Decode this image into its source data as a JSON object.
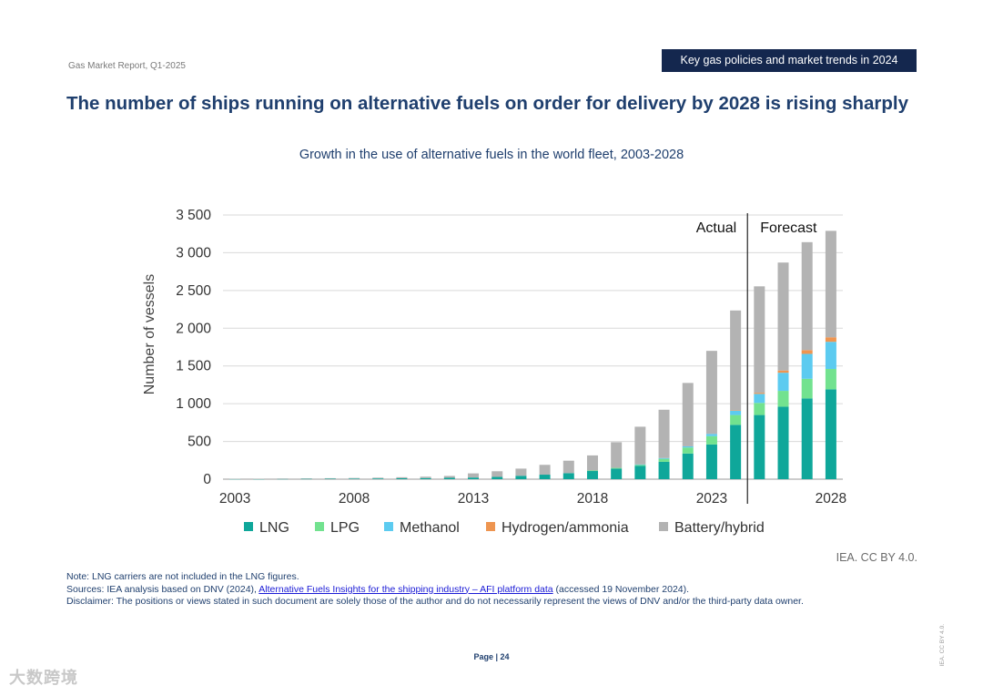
{
  "header": {
    "report_name": "Gas Market Report, Q1-2025",
    "section_banner": "Key gas policies and market trends in 2024"
  },
  "page_title": "The number of ships running on alternative fuels on order for delivery by 2028 is rising sharply",
  "chart_data": {
    "type": "bar",
    "stacked": true,
    "title": "Growth in the use of alternative fuels in the world fleet, 2003-2028",
    "xlabel": "",
    "ylabel": "Number of vessels",
    "ylim": [
      0,
      3500
    ],
    "yticks": [
      0,
      500,
      1000,
      1500,
      2000,
      2500,
      3000,
      3500
    ],
    "ytick_labels": [
      "0",
      "500",
      "1 000",
      "1 500",
      "2 000",
      "2 500",
      "3 000",
      "3 500"
    ],
    "categories": [
      "2003",
      "2004",
      "2005",
      "2006",
      "2007",
      "2008",
      "2009",
      "2010",
      "2011",
      "2012",
      "2013",
      "2014",
      "2015",
      "2016",
      "2017",
      "2018",
      "2019",
      "2020",
      "2021",
      "2022",
      "2023",
      "2024",
      "2025",
      "2026",
      "2027",
      "2028"
    ],
    "xtick_labels": [
      "2003",
      "2008",
      "2013",
      "2018",
      "2023",
      "2028"
    ],
    "grid": true,
    "legend_position": "bottom",
    "annotations": {
      "actual": "Actual",
      "forecast": "Forecast",
      "divider_after": "2024"
    },
    "series": [
      {
        "name": "LNG",
        "color": "#0fa79a",
        "values": [
          3,
          4,
          5,
          6,
          7,
          8,
          10,
          12,
          15,
          18,
          22,
          30,
          45,
          60,
          80,
          110,
          140,
          175,
          230,
          340,
          460,
          720,
          850,
          960,
          1070,
          1190
        ]
      },
      {
        "name": "LPG",
        "color": "#72e28f",
        "values": [
          0,
          0,
          0,
          0,
          0,
          0,
          0,
          0,
          0,
          0,
          0,
          0,
          0,
          0,
          0,
          5,
          10,
          15,
          40,
          80,
          110,
          130,
          160,
          210,
          260,
          270
        ]
      },
      {
        "name": "Methanol",
        "color": "#5ccbf0",
        "values": [
          0,
          0,
          0,
          0,
          0,
          0,
          0,
          0,
          0,
          0,
          0,
          0,
          0,
          0,
          0,
          0,
          0,
          5,
          10,
          15,
          30,
          60,
          120,
          240,
          330,
          360
        ]
      },
      {
        "name": "Hydrogen/ammonia",
        "color": "#ee9550",
        "values": [
          0,
          0,
          0,
          0,
          0,
          0,
          0,
          0,
          0,
          0,
          0,
          0,
          0,
          0,
          0,
          0,
          0,
          0,
          0,
          0,
          0,
          5,
          15,
          30,
          50,
          60
        ]
      },
      {
        "name": "Battery/hybrid",
        "color": "#b3b3b3",
        "values": [
          2,
          3,
          4,
          5,
          6,
          8,
          10,
          14,
          18,
          25,
          55,
          75,
          95,
          130,
          165,
          200,
          340,
          500,
          640,
          840,
          1100,
          1320,
          1410,
          1430,
          1430,
          1410
        ]
      }
    ]
  },
  "attribution": "IEA. CC BY 4.0.",
  "notes": {
    "note": "Note: LNG carriers are not included in the LNG figures.",
    "sources_prefix": "Sources: IEA analysis based on DNV (2024), ",
    "sources_link": "Alternative Fuels Insights for the shipping industry – AFI platform data",
    "sources_suffix": " (accessed 19 November 2024).",
    "disclaimer": "Disclaimer: The positions or views stated in such document are solely those of the author and do not necessarily represent the views of DNV and/or the third-party data owner."
  },
  "page_number": "Page | 24",
  "side_license": "IEA. CC BY 4.0.",
  "watermark": "大数跨境"
}
